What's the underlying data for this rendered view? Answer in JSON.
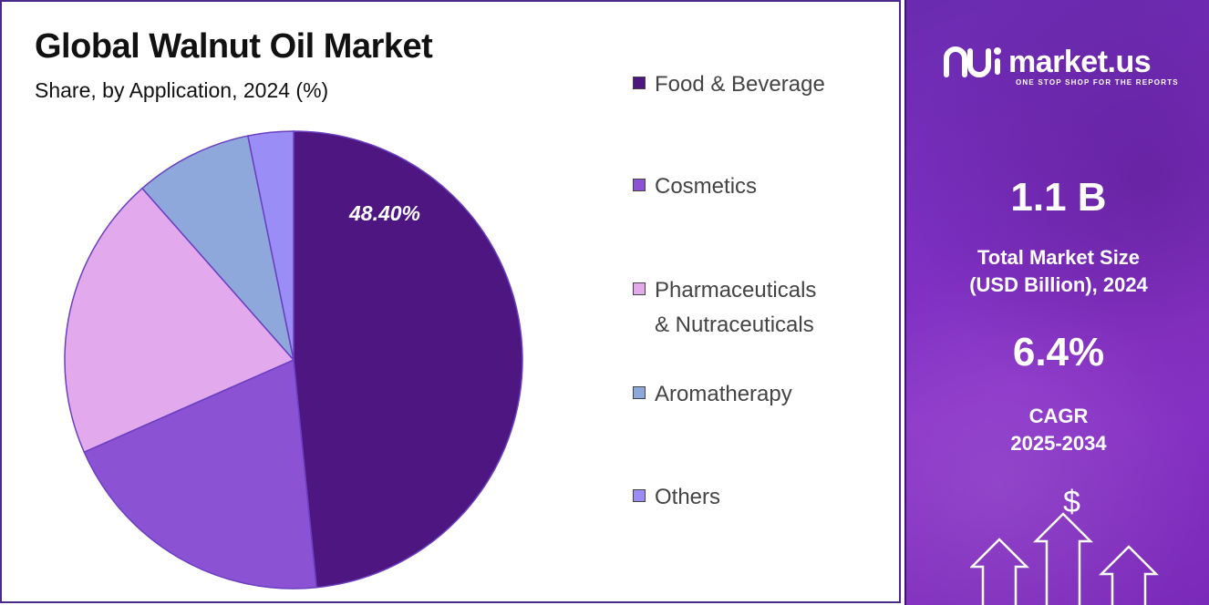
{
  "title": "Global Walnut Oil Market",
  "subtitle": "Share, by Application, 2024 (%)",
  "chart_data": {
    "type": "pie",
    "categories": [
      "Food & Beverage",
      "Cosmetics",
      "Pharmaceuticals & Nutraceuticals",
      "Aromatherapy",
      "Others"
    ],
    "values": [
      48.4,
      20.0,
      20.1,
      8.3,
      3.2
    ],
    "data_labels": [
      "48.40%",
      "",
      "",
      "",
      ""
    ],
    "colors": [
      "#4e1680",
      "#8b52d4",
      "#e2aaed",
      "#8fa8dc",
      "#9a8df5"
    ],
    "legend_position": "right"
  },
  "legend": [
    {
      "label": "Food & Beverage",
      "color": "#4e1680"
    },
    {
      "label": "Cosmetics",
      "color": "#8b52d4"
    },
    {
      "label": "Pharmaceuticals\n& Nutraceuticals",
      "color": "#e2aaed"
    },
    {
      "label": "Aromatherapy",
      "color": "#8fa8dc"
    },
    {
      "label": "Others",
      "color": "#9a8df5"
    }
  ],
  "brand": {
    "name": "market.us",
    "tagline": "ONE STOP SHOP FOR THE REPORTS",
    "logo_icon": "market-us-logo-icon"
  },
  "stats": {
    "market_size_value": "1.1 B",
    "market_size_label": "Total Market Size\n(USD Billion), 2024",
    "cagr_value": "6.4%",
    "cagr_label": "CAGR\n2025-2034"
  },
  "decor": {
    "dollar_symbol": "$",
    "arrow_icon": "up-arrow-icon"
  }
}
